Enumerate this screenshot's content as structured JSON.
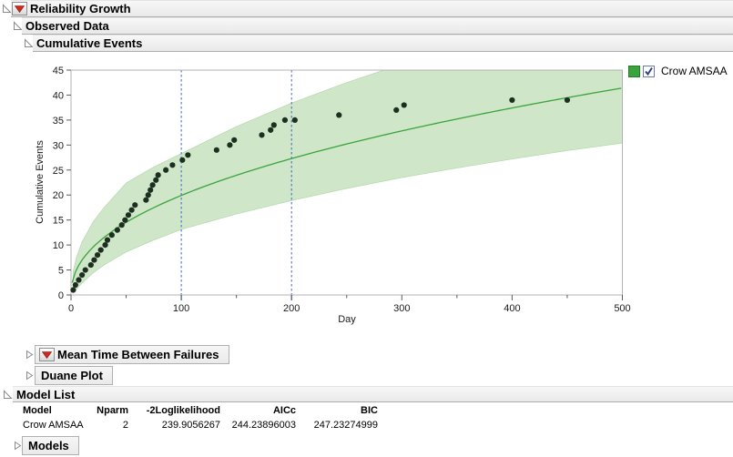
{
  "outline": {
    "reliability_growth": "Reliability Growth",
    "observed_data": "Observed Data",
    "cumulative_events": "Cumulative Events",
    "mean_time_between_failures": "Mean Time Between Failures",
    "duane_plot": "Duane Plot",
    "model_list": "Model List",
    "models": "Models"
  },
  "legend": {
    "label": "Crow AMSAA",
    "checked": true,
    "swatch_color": "#3aa43c"
  },
  "model_table": {
    "columns": [
      "Model",
      "Nparm",
      "-2Loglikelihood",
      "AICc",
      "BIC"
    ],
    "rows": [
      [
        "Crow AMSAA",
        "2",
        "239.9056267",
        "244.23896003",
        "247.23274999"
      ]
    ]
  },
  "chart_data": {
    "type": "scatter",
    "series_name": "Crow AMSAA",
    "xlabel": "Day",
    "ylabel": "Cumulative Events",
    "xlim": [
      0,
      500
    ],
    "ylim": [
      0,
      45
    ],
    "x_ticks": [
      0,
      100,
      200,
      300,
      400,
      500
    ],
    "x_minor_step": 50,
    "y_ticks": [
      0,
      5,
      10,
      15,
      20,
      25,
      30,
      35,
      40,
      45
    ],
    "ref_lines_x": [
      100,
      200
    ],
    "points": [
      [
        2,
        1
      ],
      [
        4,
        2
      ],
      [
        7,
        3
      ],
      [
        10,
        4
      ],
      [
        13,
        5
      ],
      [
        18,
        6
      ],
      [
        21,
        7
      ],
      [
        24,
        8
      ],
      [
        27,
        9
      ],
      [
        31,
        10
      ],
      [
        33,
        11
      ],
      [
        37,
        12
      ],
      [
        42,
        13
      ],
      [
        46,
        14
      ],
      [
        49,
        15
      ],
      [
        52,
        16
      ],
      [
        55,
        17
      ],
      [
        58,
        18
      ],
      [
        68,
        19
      ],
      [
        70,
        20
      ],
      [
        72,
        21
      ],
      [
        74,
        22
      ],
      [
        77,
        23
      ],
      [
        79,
        24
      ],
      [
        86,
        25
      ],
      [
        92,
        26
      ],
      [
        101,
        27
      ],
      [
        106,
        28
      ],
      [
        132,
        29
      ],
      [
        144,
        30
      ],
      [
        148,
        31
      ],
      [
        173,
        32
      ],
      [
        181,
        33
      ],
      [
        184,
        34
      ],
      [
        194,
        35
      ],
      [
        203,
        35
      ],
      [
        243,
        36
      ],
      [
        295,
        37
      ],
      [
        302,
        38
      ],
      [
        400,
        39
      ],
      [
        450,
        39
      ]
    ],
    "fit_curve": {
      "model": "Crow AMSAA",
      "lambda": 2.45,
      "beta": 0.455
    },
    "confidence_band": {
      "days": [
        2,
        5,
        10,
        20,
        30,
        50,
        75,
        100,
        150,
        200,
        250,
        300,
        350,
        400,
        450,
        500
      ],
      "lower": [
        0.4,
        1.2,
        2.4,
        4.4,
        6.0,
        8.6,
        11.0,
        13.1,
        16.2,
        18.9,
        21.3,
        23.5,
        25.4,
        27.2,
        28.9,
        30.4
      ],
      "upper": [
        4.8,
        7.6,
        10.6,
        14.6,
        17.5,
        22.4,
        25.6,
        28.3,
        33.7,
        38.4,
        42.5,
        46.2,
        49.6,
        52.8,
        55.8,
        58.6
      ]
    },
    "colors": {
      "band": "#cfe6c9",
      "band_edge": "#b2d9ac",
      "fit_line": "#3aa43c",
      "points": "#1d2f1e",
      "ref_line": "#3a66c8",
      "frame": "#b3b3b3",
      "tick": "#5a5a5a"
    },
    "grid": false,
    "legend_position": "right"
  }
}
